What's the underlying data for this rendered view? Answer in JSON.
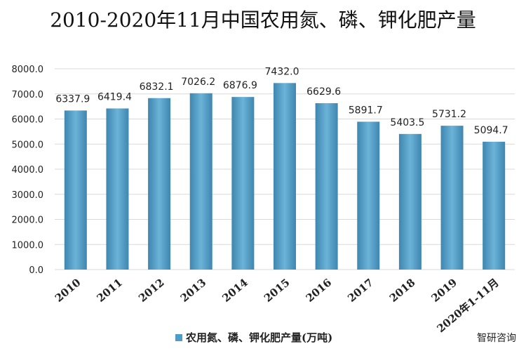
{
  "chart_data": {
    "type": "bar",
    "title": "2010-2020年11月中国农用氮、磷、钾化肥产量",
    "categories": [
      "2010",
      "2011",
      "2012",
      "2013",
      "2014",
      "2015",
      "2016",
      "2017",
      "2018",
      "2019",
      "2020年1-11月"
    ],
    "series": [
      {
        "name": "农用氮、磷、钾化肥产量(万吨)",
        "color": "#4f9cc6",
        "values": [
          6337.9,
          6419.4,
          6832.1,
          7026.2,
          6876.9,
          7432.0,
          6629.6,
          5891.7,
          5403.5,
          5731.2,
          5094.7
        ],
        "value_labels": [
          "6337.9",
          "6419.4",
          "6832.1",
          "7026.2",
          "6876.9",
          "7432.0",
          "6629.6",
          "5891.7",
          "5403.5",
          "5731.2",
          "5094.7"
        ]
      }
    ],
    "ylim": [
      0,
      8000
    ],
    "yticks": [
      {
        "value": 0,
        "label": "0.0"
      },
      {
        "value": 1000,
        "label": "1000.0"
      },
      {
        "value": 2000,
        "label": "2000.0"
      },
      {
        "value": 3000,
        "label": "3000.0"
      },
      {
        "value": 4000,
        "label": "4000.0"
      },
      {
        "value": 5000,
        "label": "5000.0"
      },
      {
        "value": 6000,
        "label": "6000.0"
      },
      {
        "value": 7000,
        "label": "7000.0"
      },
      {
        "value": 8000,
        "label": "8000.0"
      }
    ],
    "grid": true,
    "legend": "bottom",
    "watermark": "智研咨询"
  }
}
